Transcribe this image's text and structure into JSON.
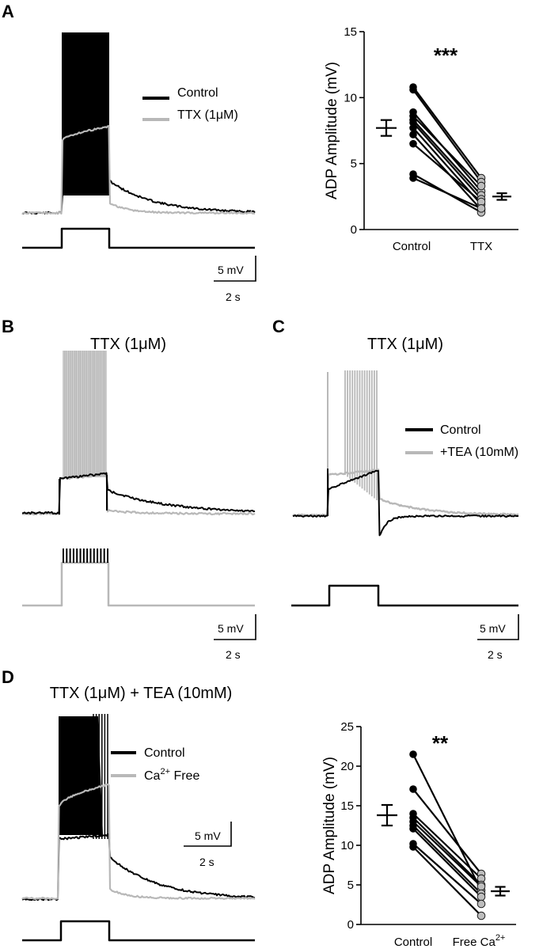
{
  "panels": {
    "A": {
      "label": "A",
      "legend": [
        "Control",
        "TTX (1μM)"
      ],
      "scale": {
        "v": "5 mV",
        "t": "2 s"
      }
    },
    "B": {
      "label": "B",
      "title": "TTX (1μM)",
      "scale": {
        "v": "5 mV",
        "t": "2 s"
      }
    },
    "C": {
      "label": "C",
      "title": "TTX (1μM)",
      "legend": [
        "Control",
        "+TEA (10mM)"
      ],
      "scale": {
        "v": "5 mV",
        "t": "2 s"
      }
    },
    "D": {
      "label": "D",
      "title": "TTX (1μM) + TEA (10mM)",
      "legend": [
        "Control",
        "Ca",
        "2+",
        " Free"
      ],
      "scale": {
        "v": "5 mV",
        "t": "2 s"
      }
    }
  },
  "colors": {
    "control": "#000000",
    "treatment": "#b8b8b8"
  },
  "chart_data": [
    {
      "type": "scatter",
      "panel": "A",
      "ylabel": "ADP Amplitude (mV)",
      "categories": [
        "Control",
        "TTX"
      ],
      "ylim": [
        0,
        15
      ],
      "yticks": [
        "0",
        "5",
        "10",
        "15"
      ],
      "significance": "***",
      "pairs": [
        [
          10.8,
          3.9
        ],
        [
          10.6,
          3.6
        ],
        [
          8.9,
          2.9
        ],
        [
          8.6,
          3.3
        ],
        [
          8.3,
          2.6
        ],
        [
          8.1,
          2.3
        ],
        [
          7.7,
          1.9
        ],
        [
          7.2,
          1.5
        ],
        [
          6.5,
          2.1
        ],
        [
          4.2,
          1.3
        ],
        [
          3.9,
          1.6
        ]
      ],
      "mean_sem": [
        {
          "mean": 7.7,
          "sem": 0.6
        },
        {
          "mean": 2.5,
          "sem": 0.25
        }
      ]
    },
    {
      "type": "scatter",
      "panel": "D",
      "ylabel": "ADP Amplitude (mV)",
      "categories": [
        "Control",
        "Free Ca"
      ],
      "category_superscript": [
        "",
        "2+"
      ],
      "ylim": [
        0,
        25
      ],
      "yticks": [
        "0",
        "5",
        "10",
        "15",
        "20",
        "25"
      ],
      "significance": "**",
      "pairs": [
        [
          21.5,
          4.3
        ],
        [
          17.1,
          6.4
        ],
        [
          14.0,
          5.8
        ],
        [
          13.5,
          5.0
        ],
        [
          13.0,
          4.8
        ],
        [
          12.5,
          3.9
        ],
        [
          12.1,
          3.5
        ],
        [
          10.2,
          2.6
        ],
        [
          9.8,
          1.1
        ]
      ],
      "mean_sem": [
        {
          "mean": 13.8,
          "sem": 1.3
        },
        {
          "mean": 4.2,
          "sem": 0.55
        }
      ]
    }
  ]
}
